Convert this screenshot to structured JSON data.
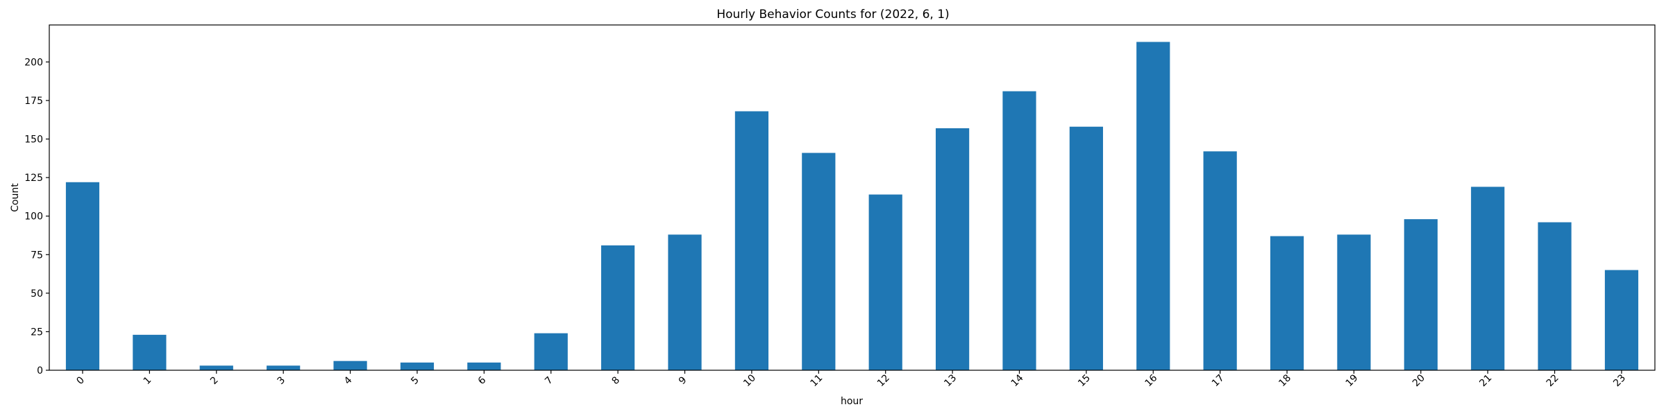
{
  "chart_data": {
    "type": "bar",
    "title": "Hourly Behavior Counts for (2022, 6, 1)",
    "xlabel": "hour",
    "ylabel": "Count",
    "categories": [
      "0",
      "1",
      "2",
      "3",
      "4",
      "5",
      "6",
      "7",
      "8",
      "9",
      "10",
      "11",
      "12",
      "13",
      "14",
      "15",
      "16",
      "17",
      "18",
      "19",
      "20",
      "21",
      "22",
      "23"
    ],
    "values": [
      122,
      23,
      3,
      3,
      6,
      5,
      5,
      24,
      81,
      88,
      168,
      141,
      114,
      157,
      181,
      158,
      213,
      142,
      87,
      88,
      98,
      119,
      96,
      65
    ],
    "ylim": [
      0,
      224
    ],
    "yticks": [
      0,
      25,
      50,
      75,
      100,
      125,
      150,
      175,
      200
    ],
    "x_tick_rotation": 45,
    "grid": false,
    "legend": false,
    "bar_color": "#1f77b4"
  }
}
